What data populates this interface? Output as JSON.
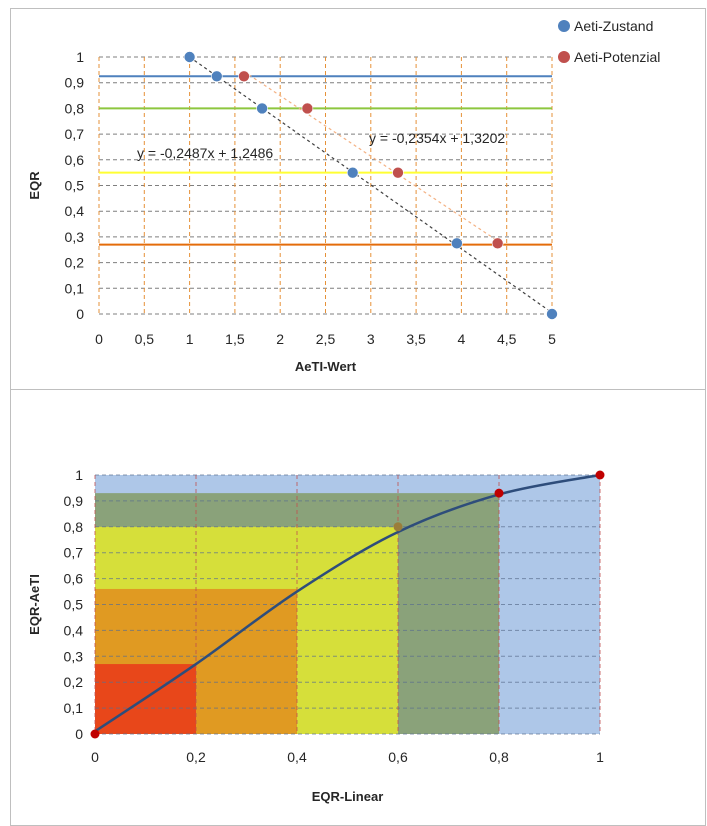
{
  "chart_data": [
    {
      "type": "scatter",
      "title": "",
      "xlabel": "AeTI-Wert",
      "ylabel": "EQR",
      "xlim": [
        0,
        5
      ],
      "ylim": [
        0,
        1
      ],
      "x_ticks": [
        "0",
        "0,5",
        "1",
        "1,5",
        "2",
        "2,5",
        "3",
        "3,5",
        "4",
        "4,5",
        "5"
      ],
      "y_ticks": [
        "0",
        "0,1",
        "0,2",
        "0,3",
        "0,4",
        "0,5",
        "0,6",
        "0,7",
        "0,8",
        "0,9",
        "1"
      ],
      "grid": true,
      "legend_position": "top-right",
      "series": [
        {
          "name": "Aeti-Zustand",
          "color": "#4f81bd",
          "points": [
            [
              1,
              1
            ],
            [
              1.3,
              0.925
            ],
            [
              1.8,
              0.8
            ],
            [
              2.8,
              0.55
            ],
            [
              3.95,
              0.275
            ],
            [
              5,
              0
            ]
          ],
          "trendline": {
            "slope": -0.2487,
            "intercept": 1.2486,
            "label": "y = -0,2487x + 1,2486",
            "color": "#404040"
          }
        },
        {
          "name": "Aeti-Potenzial",
          "color": "#c0504d",
          "points": [
            [
              1.6,
              0.925
            ],
            [
              2.3,
              0.8
            ],
            [
              3.3,
              0.55
            ],
            [
              4.4,
              0.275
            ]
          ],
          "trendline": {
            "slope": -0.2354,
            "intercept": 1.3202,
            "label": "y = -0,2354x + 1,3202",
            "color": "#f4b183"
          }
        }
      ],
      "reference_lines": [
        {
          "y": 0.925,
          "color": "#4f81bd"
        },
        {
          "y": 0.8,
          "color": "#8dc63f"
        },
        {
          "y": 0.55,
          "color": "#ffff33"
        },
        {
          "y": 0.27,
          "color": "#e46c0a"
        }
      ]
    },
    {
      "type": "line",
      "title": "",
      "xlabel": "EQR-Linear",
      "ylabel": "EQR-AeTI",
      "xlim": [
        0,
        1
      ],
      "ylim": [
        0,
        1
      ],
      "x_ticks": [
        "0",
        "0,2",
        "0,4",
        "0,6",
        "0,8",
        "1"
      ],
      "y_ticks": [
        "0",
        "0,1",
        "0,2",
        "0,3",
        "0,4",
        "0,5",
        "0,6",
        "0,7",
        "0,8",
        "0,9",
        "1"
      ],
      "grid": true,
      "background_bands": [
        {
          "x": [
            0,
            1
          ],
          "y": [
            0,
            1
          ],
          "color": "#aec7e8"
        },
        {
          "x": [
            0,
            0.8
          ],
          "y": [
            0,
            0.93
          ],
          "color": "#8aa27a"
        },
        {
          "x": [
            0,
            0.6
          ],
          "y": [
            0,
            0.8
          ],
          "color": "#d6df3a"
        },
        {
          "x": [
            0,
            0.4
          ],
          "y": [
            0,
            0.56
          ],
          "color": "#e09a22"
        },
        {
          "x": [
            0,
            0.2
          ],
          "y": [
            0,
            0.27
          ],
          "color": "#e8471a"
        }
      ],
      "series": [
        {
          "name": "",
          "color": "#2e4d7b",
          "x": [
            0,
            0.2,
            0.4,
            0.6,
            0.8,
            1
          ],
          "y": [
            0.01,
            0.27,
            0.55,
            0.78,
            0.925,
            1
          ]
        }
      ],
      "markers": [
        {
          "x": 0,
          "y": 0,
          "color": "#c00000"
        },
        {
          "x": 0.6,
          "y": 0.8,
          "color": "#9b7d3a"
        },
        {
          "x": 0.8,
          "y": 0.93,
          "color": "#c00000"
        },
        {
          "x": 1,
          "y": 1,
          "color": "#c00000"
        }
      ]
    }
  ]
}
